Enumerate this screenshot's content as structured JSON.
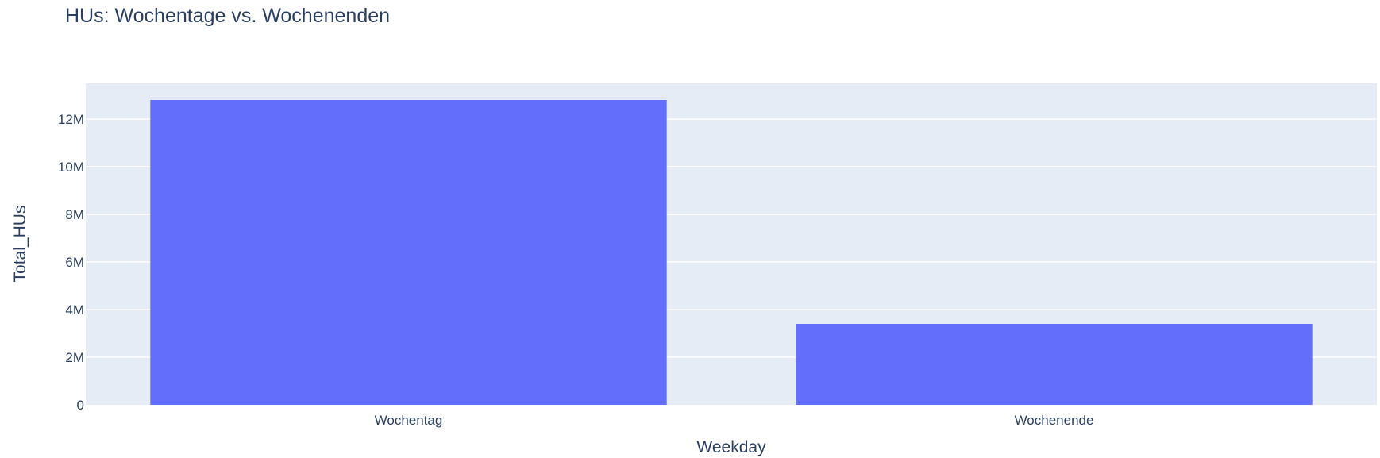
{
  "chart_data": {
    "type": "bar",
    "title": "HUs: Wochentage vs. Wochenenden",
    "xlabel": "Weekday",
    "ylabel": "Total_HUs",
    "categories": [
      "Wochentag",
      "Wochenende"
    ],
    "values": [
      12800000,
      3400000
    ],
    "ylim": [
      0,
      13500000
    ],
    "yticks": [
      0,
      2000000,
      4000000,
      6000000,
      8000000,
      10000000,
      12000000
    ],
    "ytick_labels": [
      "0",
      "2M",
      "4M",
      "6M",
      "8M",
      "10M",
      "12M"
    ],
    "grid": true,
    "legend": "none",
    "colors": {
      "bar": "#636efa",
      "plot_bg": "#e5ecf6",
      "grid": "#ffffff",
      "text": "#2a3f5f"
    }
  }
}
